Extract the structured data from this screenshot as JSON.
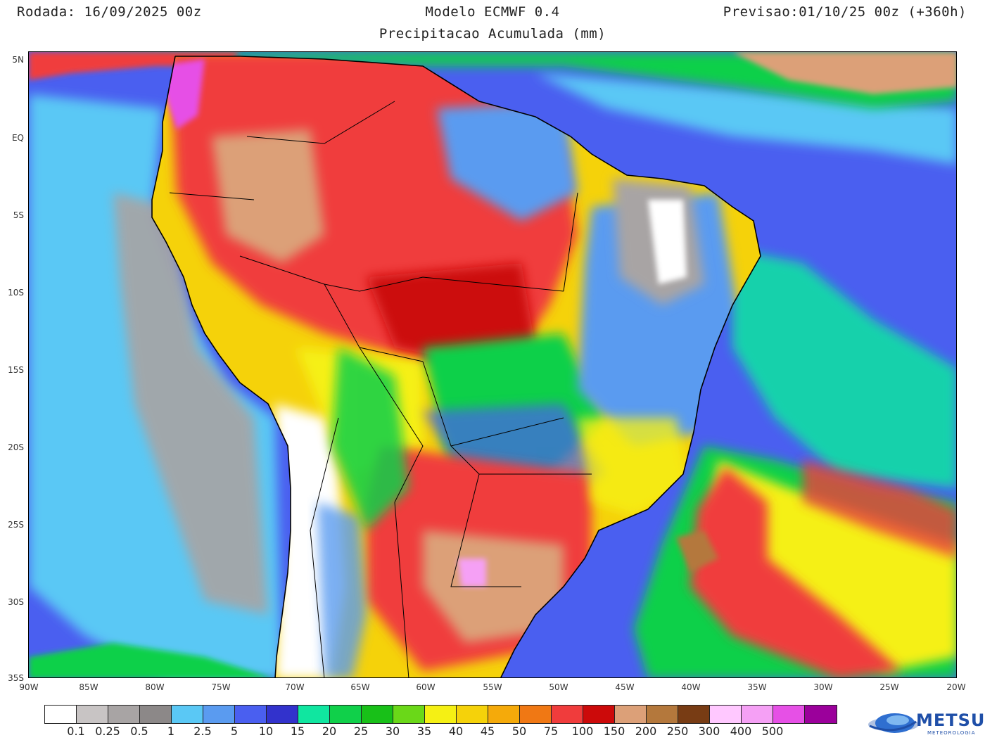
{
  "header": {
    "run": "Rodada: 16/09/2025 00z",
    "model": "Modelo ECMWF 0.4",
    "valid": "Previsao:01/10/25 00z (+360h)",
    "subtitle": "Precipitacao Acumulada (mm)"
  },
  "axes": {
    "lat_labels": [
      "5N",
      "EQ",
      "5S",
      "10S",
      "15S",
      "20S",
      "25S",
      "30S",
      "35S"
    ],
    "lon_labels": [
      "90W",
      "85W",
      "80W",
      "75W",
      "70W",
      "65W",
      "60W",
      "55W",
      "50W",
      "45W",
      "40W",
      "35W",
      "30W",
      "25W",
      "20W"
    ]
  },
  "colorbar": {
    "labels": [
      "0.1",
      "0.25",
      "0.5",
      "1",
      "2.5",
      "5",
      "10",
      "15",
      "20",
      "25",
      "30",
      "35",
      "40",
      "45",
      "50",
      "75",
      "100",
      "150",
      "200",
      "250",
      "300",
      "400",
      "500"
    ],
    "colors": [
      "#ffffff",
      "#c8c4c4",
      "#a8a4a4",
      "#8c8888",
      "#5ac8f5",
      "#5a9bf0",
      "#4a5ff0",
      "#3232cc",
      "#10e6a0",
      "#10d04a",
      "#18c018",
      "#6ad818",
      "#f5f014",
      "#f5d20a",
      "#f5aa0a",
      "#f07814",
      "#f03c3c",
      "#cc0a0a",
      "#dca078",
      "#b4783c",
      "#783c14",
      "#ffc8ff",
      "#f5a0f5",
      "#e650e6",
      "#9b009b"
    ]
  },
  "legend_colors": {
    "ocean_far": "#4a5ff0",
    "ocean_light": "#5ac8f5",
    "dry": "#ffffff",
    "wet_amazon": "#f03c3c",
    "very_wet": "#cc0a0a",
    "extreme": "#dca078"
  },
  "logo": {
    "text": "METSUL",
    "sub": "METEOROLOGIA"
  }
}
